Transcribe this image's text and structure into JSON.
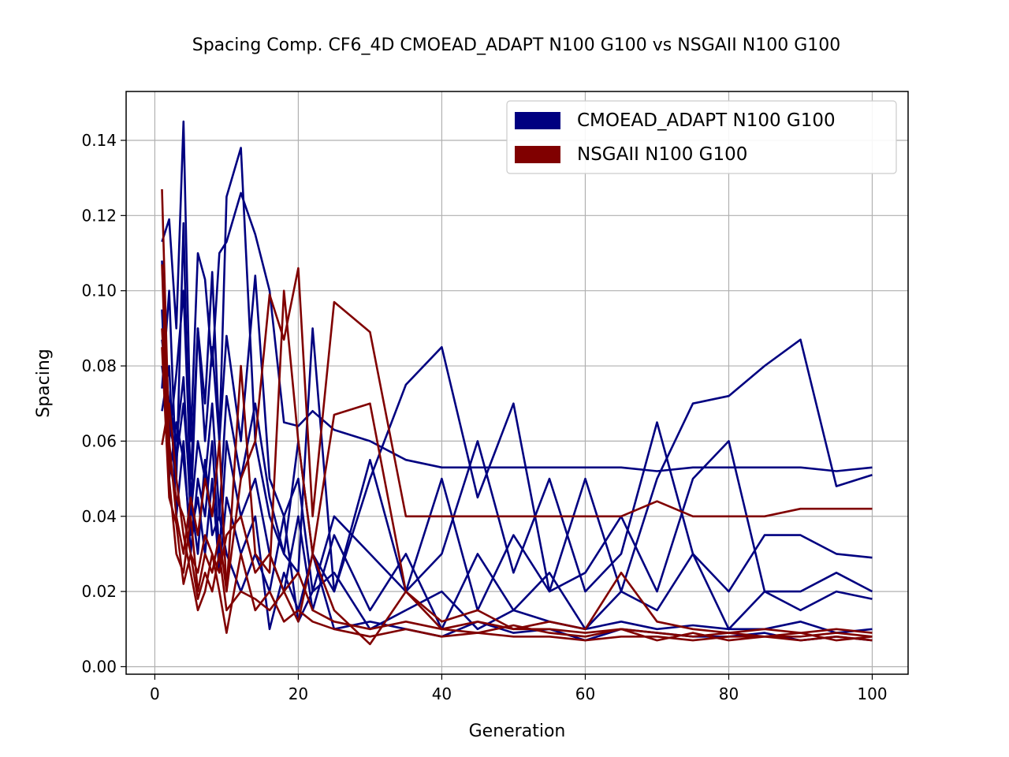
{
  "chart_data": {
    "type": "line",
    "title": "Spacing Comp. CF6_4D CMOEAD_ADAPT N100 G100 vs NSGAII N100 G100",
    "xlabel": "Generation",
    "ylabel": "Spacing",
    "xlim": [
      -4,
      105
    ],
    "ylim": [
      -0.002,
      0.153
    ],
    "x_ticks": [
      0,
      20,
      40,
      60,
      80,
      100
    ],
    "y_ticks": [
      0.0,
      0.02,
      0.04,
      0.06,
      0.08,
      0.1,
      0.12,
      0.14
    ],
    "x_tick_labels": [
      "0",
      "20",
      "40",
      "60",
      "80",
      "100"
    ],
    "y_tick_labels": [
      "0.00",
      "0.02",
      "0.04",
      "0.06",
      "0.08",
      "0.10",
      "0.12",
      "0.14"
    ],
    "grid": true,
    "legend_position": "top-right",
    "legend": [
      {
        "label": "CMOEAD_ADAPT N100 G100",
        "color": "#000080"
      },
      {
        "label": "NSGAII N100 G100",
        "color": "#800000"
      }
    ],
    "x": [
      1,
      2,
      3,
      4,
      5,
      6,
      7,
      8,
      9,
      10,
      12,
      14,
      16,
      18,
      20,
      22,
      25,
      30,
      35,
      40,
      45,
      50,
      55,
      60,
      65,
      70,
      75,
      80,
      85,
      90,
      95,
      100
    ],
    "series": [
      {
        "group": "CMOEAD_ADAPT N100 G100",
        "color": "#000080",
        "values": [
          0.113,
          0.119,
          0.09,
          0.145,
          0.06,
          0.11,
          0.103,
          0.08,
          0.11,
          0.113,
          0.126,
          0.115,
          0.1,
          0.065,
          0.064,
          0.068,
          0.063,
          0.06,
          0.055,
          0.053,
          0.053,
          0.053,
          0.053,
          0.053,
          0.053,
          0.052,
          0.053,
          0.053,
          0.053,
          0.053,
          0.052,
          0.053
        ]
      },
      {
        "group": "CMOEAD_ADAPT N100 G100",
        "color": "#000080",
        "values": [
          0.074,
          0.1,
          0.05,
          0.118,
          0.04,
          0.09,
          0.07,
          0.105,
          0.06,
          0.125,
          0.138,
          0.06,
          0.04,
          0.03,
          0.025,
          0.09,
          0.02,
          0.05,
          0.075,
          0.085,
          0.045,
          0.07,
          0.02,
          0.05,
          0.02,
          0.05,
          0.07,
          0.072,
          0.08,
          0.087,
          0.048,
          0.051
        ]
      },
      {
        "group": "CMOEAD_ADAPT N100 G100",
        "color": "#000080",
        "values": [
          0.108,
          0.06,
          0.078,
          0.1,
          0.05,
          0.09,
          0.06,
          0.085,
          0.06,
          0.088,
          0.06,
          0.104,
          0.05,
          0.04,
          0.05,
          0.02,
          0.04,
          0.03,
          0.02,
          0.03,
          0.06,
          0.025,
          0.05,
          0.02,
          0.03,
          0.065,
          0.03,
          0.02,
          0.035,
          0.035,
          0.03,
          0.029
        ]
      },
      {
        "group": "CMOEAD_ADAPT N100 G100",
        "color": "#000080",
        "values": [
          0.087,
          0.07,
          0.06,
          0.077,
          0.04,
          0.06,
          0.05,
          0.07,
          0.04,
          0.072,
          0.05,
          0.07,
          0.045,
          0.03,
          0.06,
          0.03,
          0.02,
          0.055,
          0.02,
          0.05,
          0.015,
          0.035,
          0.02,
          0.025,
          0.04,
          0.02,
          0.05,
          0.06,
          0.02,
          0.02,
          0.025,
          0.02
        ]
      },
      {
        "group": "CMOEAD_ADAPT N100 G100",
        "color": "#000080",
        "values": [
          0.068,
          0.08,
          0.04,
          0.06,
          0.03,
          0.05,
          0.04,
          0.06,
          0.03,
          0.06,
          0.04,
          0.05,
          0.03,
          0.02,
          0.04,
          0.015,
          0.035,
          0.015,
          0.03,
          0.01,
          0.03,
          0.015,
          0.025,
          0.01,
          0.02,
          0.015,
          0.03,
          0.01,
          0.02,
          0.015,
          0.02,
          0.018
        ]
      },
      {
        "group": "CMOEAD_ADAPT N100 G100",
        "color": "#000080",
        "values": [
          0.095,
          0.05,
          0.065,
          0.055,
          0.035,
          0.045,
          0.03,
          0.05,
          0.025,
          0.045,
          0.03,
          0.04,
          0.01,
          0.025,
          0.015,
          0.03,
          0.01,
          0.012,
          0.01,
          0.008,
          0.012,
          0.009,
          0.01,
          0.007,
          0.01,
          0.009,
          0.008,
          0.008,
          0.009,
          0.007,
          0.008,
          0.007
        ]
      },
      {
        "group": "CMOEAD_ADAPT N100 G100",
        "color": "#000080",
        "values": [
          0.08,
          0.065,
          0.055,
          0.07,
          0.045,
          0.03,
          0.055,
          0.035,
          0.04,
          0.03,
          0.02,
          0.03,
          0.02,
          0.04,
          0.012,
          0.02,
          0.025,
          0.01,
          0.015,
          0.02,
          0.01,
          0.015,
          0.012,
          0.01,
          0.012,
          0.01,
          0.011,
          0.01,
          0.01,
          0.012,
          0.009,
          0.01
        ]
      },
      {
        "group": "NSGAII N100 G100",
        "color": "#800000",
        "values": [
          0.127,
          0.06,
          0.04,
          0.03,
          0.045,
          0.035,
          0.05,
          0.04,
          0.06,
          0.02,
          0.05,
          0.06,
          0.099,
          0.087,
          0.106,
          0.04,
          0.097,
          0.089,
          0.04,
          0.04,
          0.04,
          0.04,
          0.04,
          0.04,
          0.04,
          0.044,
          0.04,
          0.04,
          0.04,
          0.042,
          0.042,
          0.042
        ]
      },
      {
        "group": "NSGAII N100 G100",
        "color": "#800000",
        "values": [
          0.107,
          0.05,
          0.03,
          0.025,
          0.04,
          0.02,
          0.03,
          0.025,
          0.035,
          0.02,
          0.08,
          0.03,
          0.025,
          0.1,
          0.06,
          0.03,
          0.067,
          0.07,
          0.02,
          0.012,
          0.015,
          0.01,
          0.012,
          0.01,
          0.025,
          0.012,
          0.01,
          0.009,
          0.01,
          0.009,
          0.01,
          0.009
        ]
      },
      {
        "group": "NSGAII N100 G100",
        "color": "#800000",
        "values": [
          0.09,
          0.055,
          0.045,
          0.04,
          0.03,
          0.025,
          0.035,
          0.03,
          0.025,
          0.035,
          0.04,
          0.025,
          0.03,
          0.02,
          0.025,
          0.015,
          0.012,
          0.01,
          0.012,
          0.01,
          0.012,
          0.01,
          0.01,
          0.009,
          0.01,
          0.009,
          0.008,
          0.009,
          0.008,
          0.008,
          0.009,
          0.008
        ]
      },
      {
        "group": "NSGAII N100 G100",
        "color": "#800000",
        "values": [
          0.059,
          0.07,
          0.05,
          0.035,
          0.025,
          0.015,
          0.02,
          0.03,
          0.02,
          0.009,
          0.03,
          0.015,
          0.02,
          0.012,
          0.015,
          0.012,
          0.01,
          0.008,
          0.01,
          0.008,
          0.009,
          0.008,
          0.008,
          0.007,
          0.008,
          0.008,
          0.007,
          0.008,
          0.008,
          0.007,
          0.008,
          0.007
        ]
      },
      {
        "group": "NSGAII N100 G100",
        "color": "#800000",
        "values": [
          0.085,
          0.045,
          0.038,
          0.022,
          0.03,
          0.018,
          0.025,
          0.02,
          0.03,
          0.015,
          0.02,
          0.018,
          0.015,
          0.02,
          0.012,
          0.03,
          0.015,
          0.006,
          0.02,
          0.01,
          0.009,
          0.011,
          0.009,
          0.008,
          0.01,
          0.007,
          0.009,
          0.007,
          0.008,
          0.009,
          0.007,
          0.008
        ]
      }
    ]
  }
}
